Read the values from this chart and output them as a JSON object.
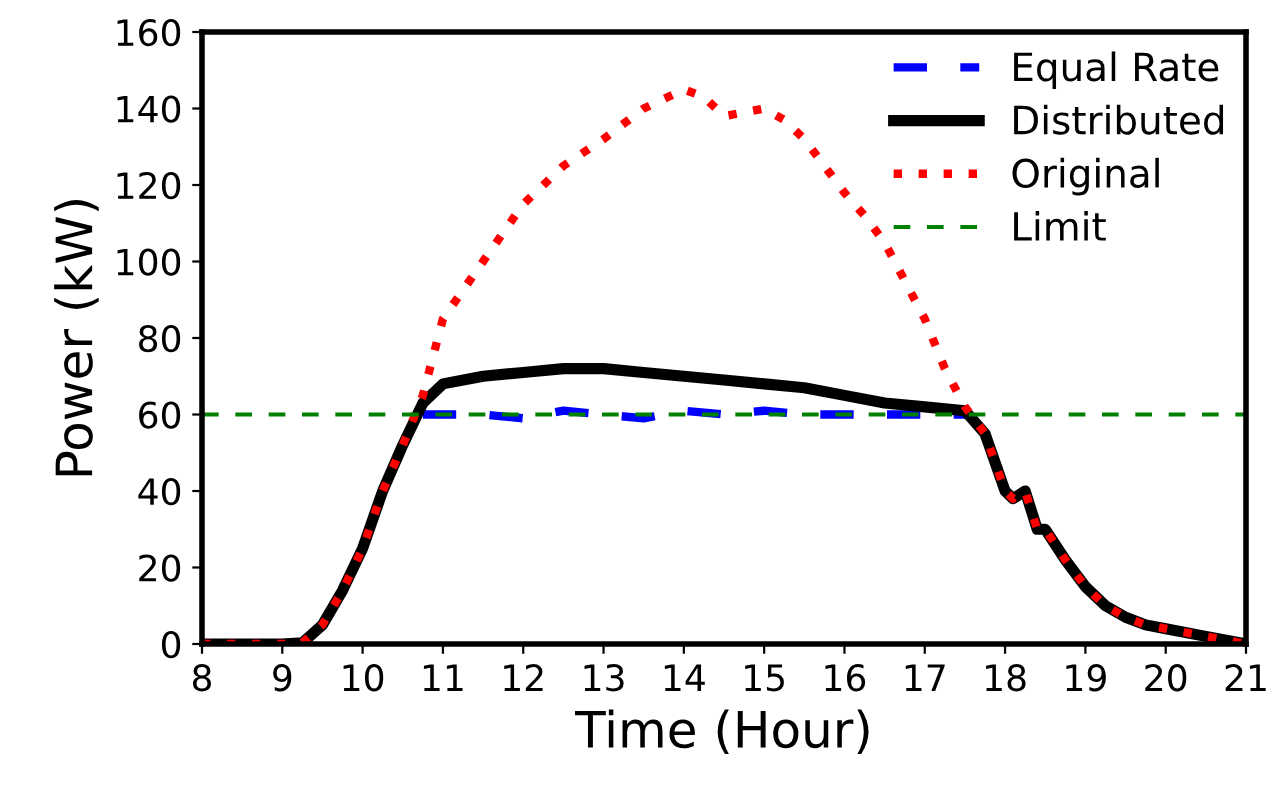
{
  "chart_data": {
    "type": "line",
    "xlabel": "Time (Hour)",
    "ylabel": "Power (kW)",
    "xlim": [
      8,
      21
    ],
    "xticks": [
      8,
      9,
      10,
      11,
      12,
      13,
      14,
      15,
      16,
      17,
      18,
      19,
      20,
      21
    ],
    "ylim": [
      0,
      160
    ],
    "yticks": [
      0,
      20,
      40,
      60,
      80,
      100,
      120,
      140,
      160
    ],
    "grid": false,
    "legend": "top right",
    "series": [
      {
        "name": "Equal Rate",
        "color": "#0000ff",
        "line_style": "dashed",
        "x": [
          10.75,
          11,
          11.5,
          12,
          12.5,
          13,
          13.5,
          14,
          14.5,
          15,
          15.5,
          16,
          16.5,
          17,
          17.5
        ],
        "values": [
          60,
          60,
          60,
          59,
          61,
          60,
          59,
          61,
          60,
          61,
          60,
          60,
          60,
          60,
          60
        ]
      },
      {
        "name": "Distributed",
        "color": "#000000",
        "line_style": "solid",
        "x": [
          8,
          9,
          9.25,
          9.5,
          9.75,
          10,
          10.25,
          10.5,
          10.75,
          11,
          11.5,
          12,
          12.5,
          13,
          13.5,
          14,
          14.5,
          15,
          15.5,
          16,
          16.5,
          17,
          17.5,
          17.75,
          18,
          18.1,
          18.25,
          18.4,
          18.5,
          18.75,
          19,
          19.25,
          19.5,
          19.75,
          20,
          20.5,
          21
        ],
        "values": [
          0,
          0,
          0.3,
          5,
          14,
          25,
          40,
          52,
          63,
          68,
          70,
          71,
          72,
          72,
          71,
          70,
          69,
          68,
          67,
          65,
          63,
          62,
          61,
          55,
          40,
          38,
          40,
          30,
          30,
          22,
          15,
          10,
          7,
          5,
          4,
          2,
          0
        ]
      },
      {
        "name": "Original",
        "color": "#ff0000",
        "line_style": "dotted",
        "x": [
          8,
          9,
          9.25,
          9.5,
          9.75,
          10,
          10.25,
          10.5,
          10.75,
          11,
          11.5,
          12,
          12.5,
          13,
          13.5,
          14,
          14.25,
          14.5,
          15,
          15.25,
          15.5,
          15.75,
          16,
          16.25,
          16.5,
          16.75,
          17,
          17.25,
          17.5,
          17.75,
          18,
          18.1,
          18.25,
          18.4,
          18.5,
          18.75,
          19,
          19.25,
          19.5,
          19.75,
          20,
          20.5,
          21
        ],
        "values": [
          0,
          0,
          0.3,
          5,
          14,
          25,
          40,
          52,
          65,
          85,
          100,
          115,
          125,
          132,
          140,
          145,
          143,
          138,
          140,
          137,
          132,
          125,
          118,
          112,
          105,
          95,
          85,
          72,
          62,
          55,
          40,
          38,
          40,
          30,
          30,
          22,
          15,
          10,
          7,
          5,
          4,
          2,
          0
        ]
      }
    ],
    "ref_lines": [
      {
        "axis": "y",
        "value": 60,
        "label": "Limit",
        "color": "#008000",
        "line_style": "dashed"
      }
    ]
  }
}
